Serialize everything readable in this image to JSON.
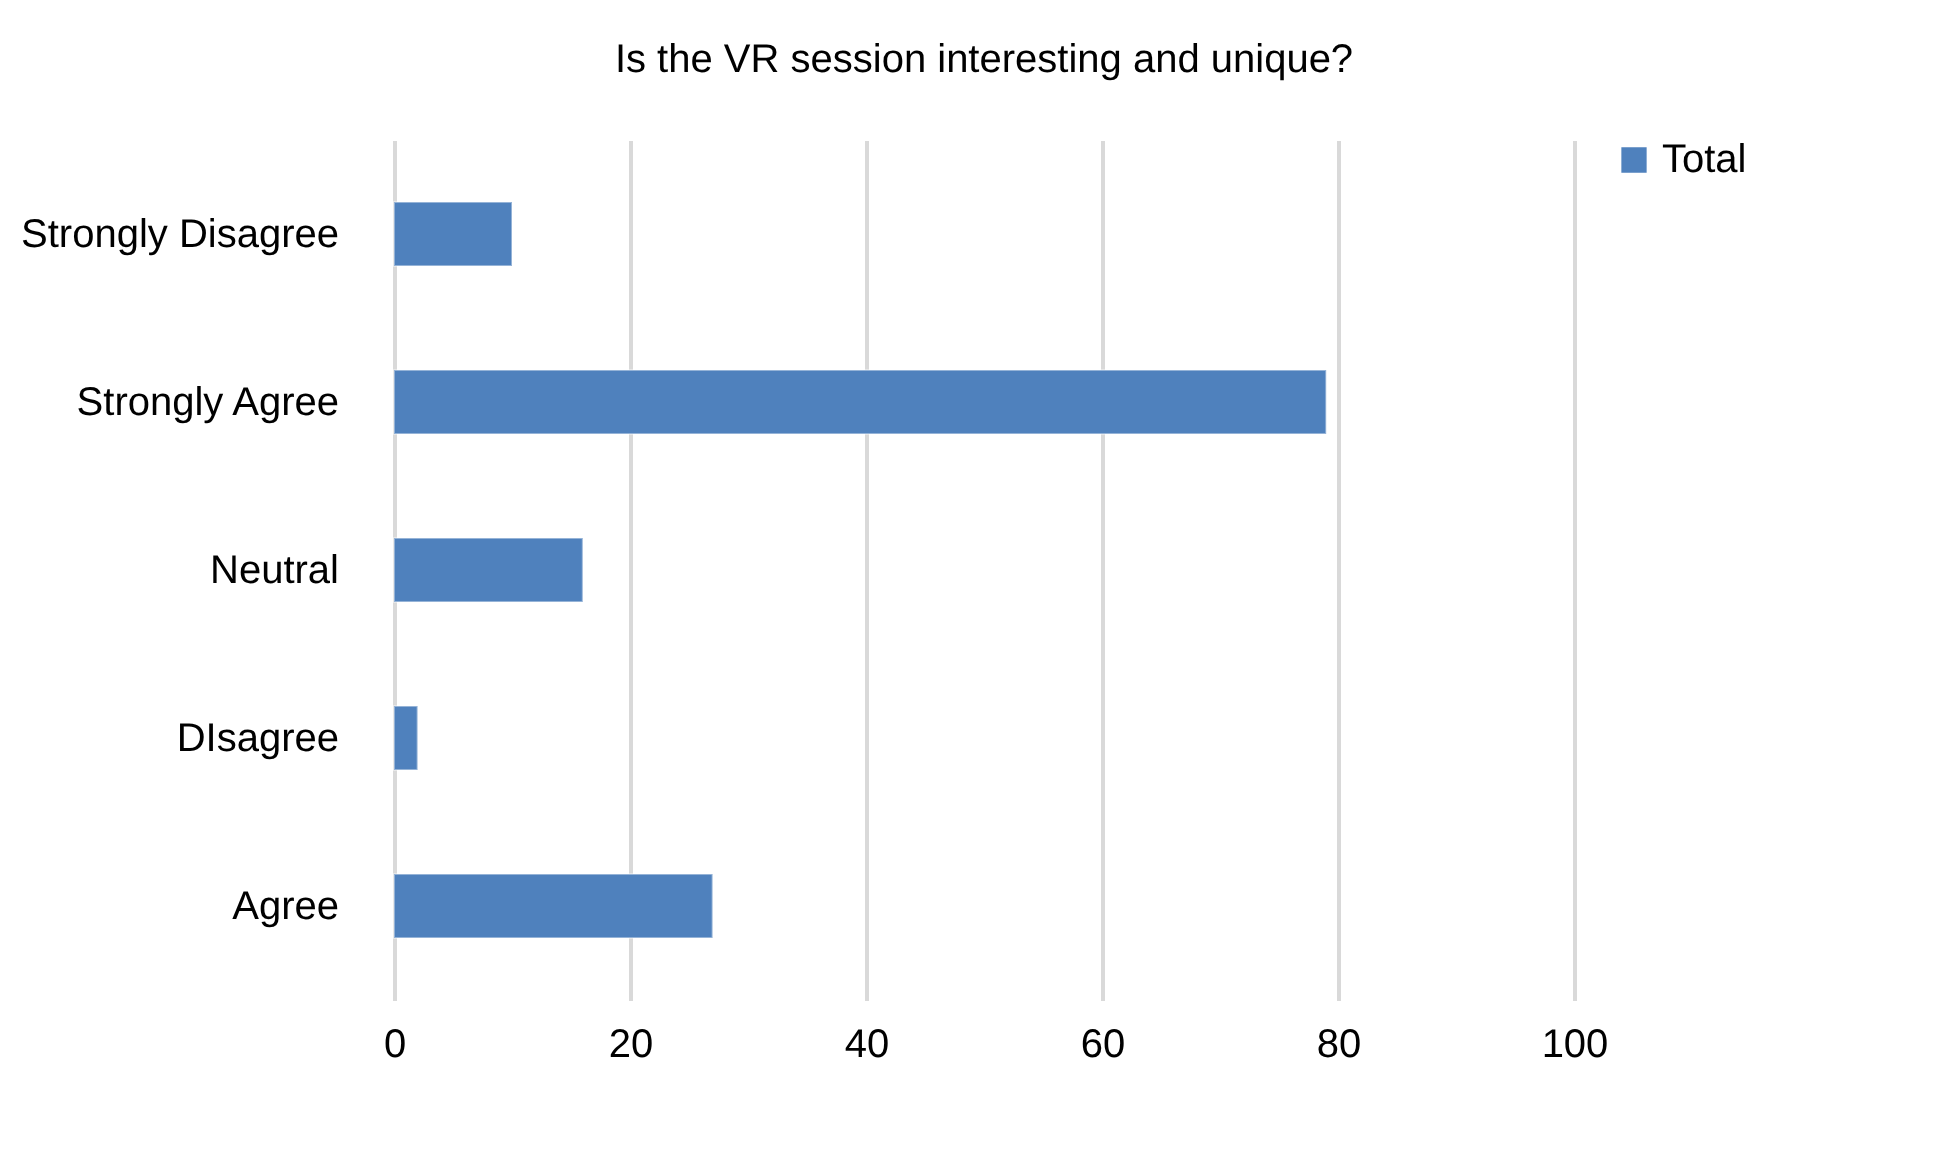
{
  "chart_data": {
    "type": "bar",
    "orientation": "horizontal",
    "title": "Is the VR session interesting and unique?",
    "categories": [
      "Strongly Disagree",
      "Strongly Agree",
      "Neutral",
      "DIsagree",
      "Agree"
    ],
    "series": [
      {
        "name": "Total",
        "color": "#4f81bd",
        "values": [
          10,
          79,
          16,
          2,
          27
        ]
      }
    ],
    "xlim": [
      0,
      100
    ],
    "xticks": [
      0,
      20,
      40,
      60,
      80,
      100
    ],
    "grid": "x",
    "legend": "right"
  }
}
